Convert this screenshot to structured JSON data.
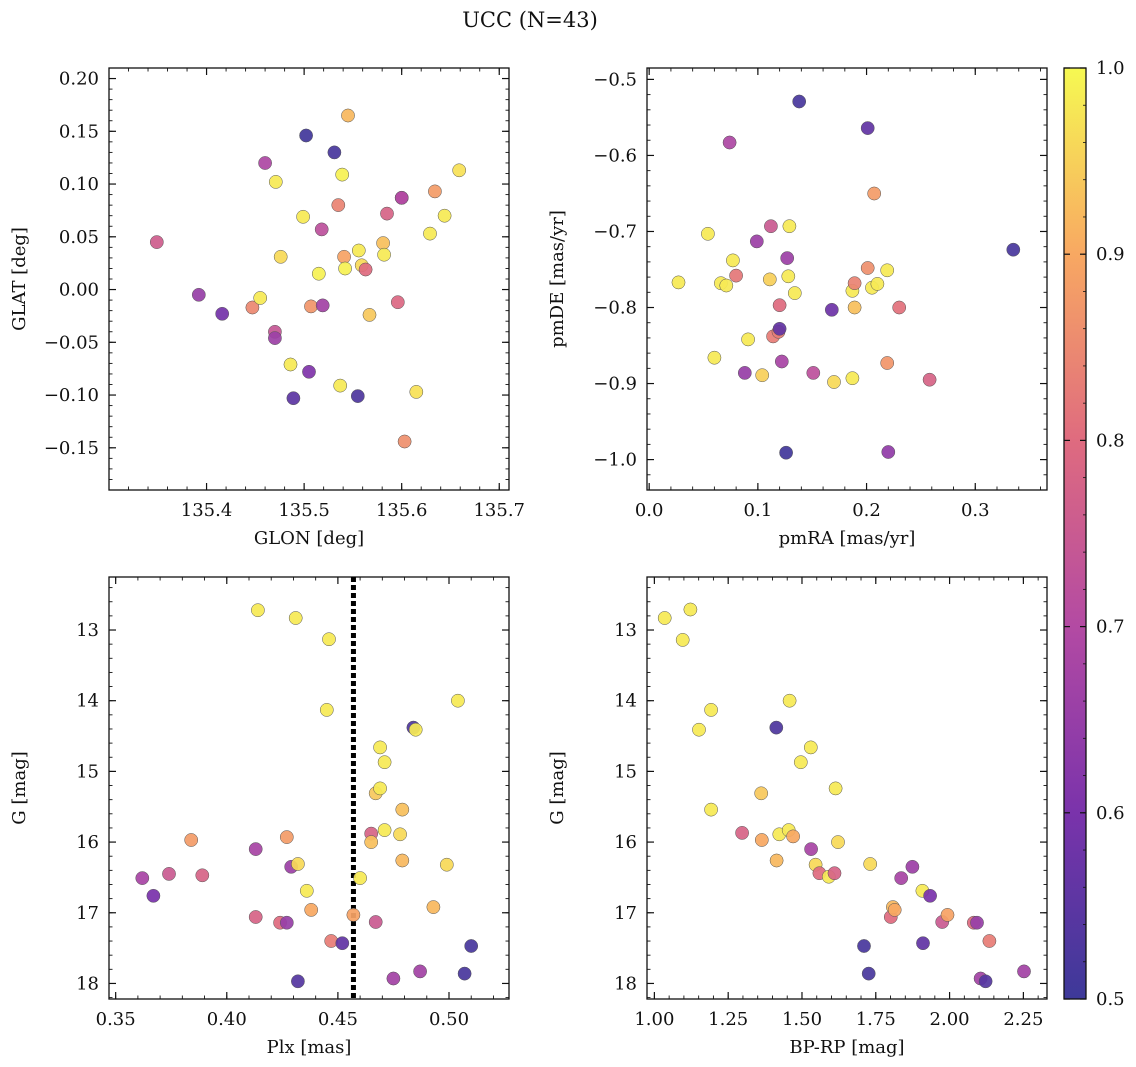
{
  "figure": {
    "title": "UCC (N=43)"
  },
  "colorbar": {
    "min": 0.5,
    "max": 1.0,
    "colormap": "plasma",
    "ticks": [
      "0.5",
      "0.6",
      "0.7",
      "0.8",
      "0.9",
      "1.0"
    ]
  },
  "chart_data": [
    {
      "type": "scatter",
      "xlabel": "GLON [deg]",
      "ylabel": "GLAT [deg]",
      "xlim": [
        135.3,
        135.71
      ],
      "ylim": [
        -0.19,
        0.21
      ],
      "xticks": [
        "135.4",
        "135.5",
        "135.6",
        "135.7"
      ],
      "yticks": [
        "0.20",
        "0.15",
        "0.10",
        "0.05",
        "0.00",
        "−0.05",
        "−0.10",
        "−0.15"
      ],
      "points": [
        {
          "x": 135.349,
          "y": 0.045,
          "c": 0.76
        },
        {
          "x": 135.392,
          "y": -0.005,
          "c": 0.65
        },
        {
          "x": 135.416,
          "y": -0.023,
          "c": 0.59
        },
        {
          "x": 135.447,
          "y": -0.017,
          "c": 0.85
        },
        {
          "x": 135.455,
          "y": -0.008,
          "c": 0.98
        },
        {
          "x": 135.46,
          "y": 0.12,
          "c": 0.69
        },
        {
          "x": 135.47,
          "y": -0.04,
          "c": 0.74
        },
        {
          "x": 135.47,
          "y": -0.046,
          "c": 0.66
        },
        {
          "x": 135.471,
          "y": 0.102,
          "c": 0.98
        },
        {
          "x": 135.476,
          "y": 0.031,
          "c": 0.96
        },
        {
          "x": 135.486,
          "y": -0.071,
          "c": 0.98
        },
        {
          "x": 135.489,
          "y": -0.103,
          "c": 0.55
        },
        {
          "x": 135.499,
          "y": 0.069,
          "c": 0.98
        },
        {
          "x": 135.502,
          "y": 0.146,
          "c": 0.51
        },
        {
          "x": 135.505,
          "y": -0.078,
          "c": 0.61
        },
        {
          "x": 135.507,
          "y": -0.016,
          "c": 0.87
        },
        {
          "x": 135.515,
          "y": 0.015,
          "c": 0.99
        },
        {
          "x": 135.518,
          "y": 0.057,
          "c": 0.72
        },
        {
          "x": 135.519,
          "y": -0.015,
          "c": 0.67
        },
        {
          "x": 135.531,
          "y": 0.13,
          "c": 0.52
        },
        {
          "x": 135.535,
          "y": 0.08,
          "c": 0.84
        },
        {
          "x": 135.537,
          "y": -0.091,
          "c": 0.98
        },
        {
          "x": 135.539,
          "y": 0.109,
          "c": 0.99
        },
        {
          "x": 135.541,
          "y": 0.031,
          "c": 0.89
        },
        {
          "x": 135.542,
          "y": 0.02,
          "c": 0.99
        },
        {
          "x": 135.545,
          "y": 0.165,
          "c": 0.92
        },
        {
          "x": 135.555,
          "y": -0.101,
          "c": 0.53
        },
        {
          "x": 135.556,
          "y": 0.037,
          "c": 0.98
        },
        {
          "x": 135.559,
          "y": 0.023,
          "c": 0.96
        },
        {
          "x": 135.563,
          "y": 0.019,
          "c": 0.8
        },
        {
          "x": 135.567,
          "y": -0.024,
          "c": 0.94
        },
        {
          "x": 135.581,
          "y": 0.044,
          "c": 0.93
        },
        {
          "x": 135.582,
          "y": 0.033,
          "c": 0.98
        },
        {
          "x": 135.585,
          "y": 0.072,
          "c": 0.78
        },
        {
          "x": 135.596,
          "y": -0.012,
          "c": 0.79
        },
        {
          "x": 135.6,
          "y": 0.087,
          "c": 0.7
        },
        {
          "x": 135.603,
          "y": -0.144,
          "c": 0.86
        },
        {
          "x": 135.615,
          "y": -0.097,
          "c": 0.97
        },
        {
          "x": 135.629,
          "y": 0.053,
          "c": 0.98
        },
        {
          "x": 135.634,
          "y": 0.093,
          "c": 0.88
        },
        {
          "x": 135.644,
          "y": 0.07,
          "c": 0.98
        },
        {
          "x": 135.659,
          "y": 0.113,
          "c": 0.97
        },
        {
          "x": 135.6,
          "y": 0.087,
          "c": 0.7
        }
      ]
    },
    {
      "type": "scatter",
      "xlabel": "pmRA [mas/yr]",
      "ylabel": "pmDE [mas/yr]",
      "xlim": [
        -0.002,
        0.366
      ],
      "ylim": [
        -1.04,
        -0.485
      ],
      "xticks": [
        "0.0",
        "0.1",
        "0.2",
        "0.3"
      ],
      "yticks": [
        "−0.5",
        "−0.6",
        "−0.7",
        "−0.8",
        "−0.9",
        "−1.0"
      ],
      "points": [
        {
          "x": 0.027,
          "y": -0.767,
          "c": 0.98
        },
        {
          "x": 0.054,
          "y": -0.703,
          "c": 0.98
        },
        {
          "x": 0.06,
          "y": -0.866,
          "c": 0.98
        },
        {
          "x": 0.066,
          "y": -0.768,
          "c": 0.98
        },
        {
          "x": 0.071,
          "y": -0.771,
          "c": 0.98
        },
        {
          "x": 0.074,
          "y": -0.583,
          "c": 0.69
        },
        {
          "x": 0.077,
          "y": -0.738,
          "c": 0.98
        },
        {
          "x": 0.08,
          "y": -0.758,
          "c": 0.82
        },
        {
          "x": 0.088,
          "y": -0.886,
          "c": 0.65
        },
        {
          "x": 0.091,
          "y": -0.842,
          "c": 0.98
        },
        {
          "x": 0.099,
          "y": -0.713,
          "c": 0.66
        },
        {
          "x": 0.104,
          "y": -0.889,
          "c": 0.95
        },
        {
          "x": 0.111,
          "y": -0.763,
          "c": 0.95
        },
        {
          "x": 0.112,
          "y": -0.693,
          "c": 0.75
        },
        {
          "x": 0.114,
          "y": -0.838,
          "c": 0.83
        },
        {
          "x": 0.119,
          "y": -0.832,
          "c": 0.83
        },
        {
          "x": 0.12,
          "y": -0.797,
          "c": 0.8
        },
        {
          "x": 0.12,
          "y": -0.828,
          "c": 0.56
        },
        {
          "x": 0.122,
          "y": -0.871,
          "c": 0.68
        },
        {
          "x": 0.126,
          "y": -0.991,
          "c": 0.51
        },
        {
          "x": 0.127,
          "y": -0.735,
          "c": 0.66
        },
        {
          "x": 0.128,
          "y": -0.759,
          "c": 0.98
        },
        {
          "x": 0.129,
          "y": -0.693,
          "c": 0.98
        },
        {
          "x": 0.134,
          "y": -0.781,
          "c": 0.98
        },
        {
          "x": 0.138,
          "y": -0.529,
          "c": 0.52
        },
        {
          "x": 0.151,
          "y": -0.886,
          "c": 0.72
        },
        {
          "x": 0.168,
          "y": -0.803,
          "c": 0.58
        },
        {
          "x": 0.17,
          "y": -0.898,
          "c": 0.96
        },
        {
          "x": 0.187,
          "y": -0.893,
          "c": 0.98
        },
        {
          "x": 0.187,
          "y": -0.778,
          "c": 0.98
        },
        {
          "x": 0.189,
          "y": -0.768,
          "c": 0.84
        },
        {
          "x": 0.189,
          "y": -0.8,
          "c": 0.93
        },
        {
          "x": 0.201,
          "y": -0.564,
          "c": 0.56
        },
        {
          "x": 0.201,
          "y": -0.748,
          "c": 0.86
        },
        {
          "x": 0.205,
          "y": -0.774,
          "c": 0.98
        },
        {
          "x": 0.207,
          "y": -0.65,
          "c": 0.88
        },
        {
          "x": 0.21,
          "y": -0.769,
          "c": 0.98
        },
        {
          "x": 0.219,
          "y": -0.751,
          "c": 0.98
        },
        {
          "x": 0.219,
          "y": -0.873,
          "c": 0.87
        },
        {
          "x": 0.22,
          "y": -0.99,
          "c": 0.64
        },
        {
          "x": 0.23,
          "y": -0.8,
          "c": 0.81
        },
        {
          "x": 0.258,
          "y": -0.895,
          "c": 0.78
        },
        {
          "x": 0.335,
          "y": -0.724,
          "c": 0.52
        }
      ]
    },
    {
      "type": "scatter",
      "xlabel": "Plx [mas]",
      "ylabel": "G [mag]",
      "xlim": [
        0.347,
        0.527
      ],
      "ylim": [
        18.22,
        12.25
      ],
      "y_inverted": true,
      "xticks": [
        "0.35",
        "0.40",
        "0.45",
        "0.50"
      ],
      "yticks": [
        "13",
        "14",
        "15",
        "16",
        "17",
        "18"
      ],
      "vline": {
        "x": 0.457,
        "style": "dotted"
      },
      "points": [
        {
          "x": 0.362,
          "y": 16.51,
          "c": 0.68
        },
        {
          "x": 0.367,
          "y": 16.76,
          "c": 0.6
        },
        {
          "x": 0.374,
          "y": 16.45,
          "c": 0.75
        },
        {
          "x": 0.384,
          "y": 15.97,
          "c": 0.88
        },
        {
          "x": 0.389,
          "y": 16.47,
          "c": 0.78
        },
        {
          "x": 0.413,
          "y": 16.1,
          "c": 0.68
        },
        {
          "x": 0.413,
          "y": 17.06,
          "c": 0.78
        },
        {
          "x": 0.414,
          "y": 12.72,
          "c": 0.98
        },
        {
          "x": 0.424,
          "y": 17.14,
          "c": 0.8
        },
        {
          "x": 0.427,
          "y": 17.14,
          "c": 0.65
        },
        {
          "x": 0.427,
          "y": 15.93,
          "c": 0.88
        },
        {
          "x": 0.429,
          "y": 16.35,
          "c": 0.66
        },
        {
          "x": 0.431,
          "y": 12.83,
          "c": 0.98
        },
        {
          "x": 0.432,
          "y": 16.31,
          "c": 0.96
        },
        {
          "x": 0.432,
          "y": 17.97,
          "c": 0.54
        },
        {
          "x": 0.436,
          "y": 16.69,
          "c": 0.98
        },
        {
          "x": 0.438,
          "y": 16.96,
          "c": 0.9
        },
        {
          "x": 0.445,
          "y": 14.13,
          "c": 0.98
        },
        {
          "x": 0.446,
          "y": 13.13,
          "c": 0.98
        },
        {
          "x": 0.447,
          "y": 17.4,
          "c": 0.83
        },
        {
          "x": 0.452,
          "y": 17.43,
          "c": 0.56
        },
        {
          "x": 0.457,
          "y": 17.03,
          "c": 0.89
        },
        {
          "x": 0.46,
          "y": 16.51,
          "c": 0.98
        },
        {
          "x": 0.465,
          "y": 15.88,
          "c": 0.78
        },
        {
          "x": 0.465,
          "y": 16.0,
          "c": 0.93
        },
        {
          "x": 0.467,
          "y": 17.13,
          "c": 0.75
        },
        {
          "x": 0.467,
          "y": 15.31,
          "c": 0.94
        },
        {
          "x": 0.469,
          "y": 14.66,
          "c": 0.98
        },
        {
          "x": 0.469,
          "y": 15.24,
          "c": 0.98
        },
        {
          "x": 0.471,
          "y": 14.87,
          "c": 0.98
        },
        {
          "x": 0.471,
          "y": 15.83,
          "c": 0.98
        },
        {
          "x": 0.475,
          "y": 17.93,
          "c": 0.67
        },
        {
          "x": 0.478,
          "y": 15.89,
          "c": 0.96
        },
        {
          "x": 0.479,
          "y": 16.26,
          "c": 0.92
        },
        {
          "x": 0.479,
          "y": 15.54,
          "c": 0.93
        },
        {
          "x": 0.484,
          "y": 14.38,
          "c": 0.53
        },
        {
          "x": 0.485,
          "y": 14.41,
          "c": 0.98
        },
        {
          "x": 0.487,
          "y": 17.83,
          "c": 0.67
        },
        {
          "x": 0.493,
          "y": 16.92,
          "c": 0.92
        },
        {
          "x": 0.499,
          "y": 16.32,
          "c": 0.96
        },
        {
          "x": 0.504,
          "y": 14.0,
          "c": 0.98
        },
        {
          "x": 0.507,
          "y": 17.86,
          "c": 0.52
        },
        {
          "x": 0.51,
          "y": 17.47,
          "c": 0.52
        }
      ]
    },
    {
      "type": "scatter",
      "xlabel": "BP-RP [mag]",
      "ylabel": "G [mag]",
      "xlim": [
        0.975,
        2.33
      ],
      "ylim": [
        18.22,
        12.25
      ],
      "y_inverted": true,
      "xticks": [
        "1.00",
        "1.25",
        "1.50",
        "1.75",
        "2.00",
        "2.25"
      ],
      "yticks": [
        "13",
        "14",
        "15",
        "16",
        "17",
        "18"
      ],
      "points": [
        {
          "x": 1.035,
          "y": 12.83,
          "c": 0.98
        },
        {
          "x": 1.096,
          "y": 13.14,
          "c": 0.98
        },
        {
          "x": 1.122,
          "y": 12.71,
          "c": 0.98
        },
        {
          "x": 1.151,
          "y": 14.41,
          "c": 0.98
        },
        {
          "x": 1.192,
          "y": 14.13,
          "c": 0.98
        },
        {
          "x": 1.192,
          "y": 15.54,
          "c": 0.98
        },
        {
          "x": 1.297,
          "y": 15.87,
          "c": 0.78
        },
        {
          "x": 1.362,
          "y": 15.31,
          "c": 0.94
        },
        {
          "x": 1.364,
          "y": 15.97,
          "c": 0.9
        },
        {
          "x": 1.413,
          "y": 14.38,
          "c": 0.53
        },
        {
          "x": 1.414,
          "y": 16.26,
          "c": 0.92
        },
        {
          "x": 1.423,
          "y": 15.89,
          "c": 0.98
        },
        {
          "x": 1.455,
          "y": 15.83,
          "c": 0.98
        },
        {
          "x": 1.458,
          "y": 14.0,
          "c": 0.98
        },
        {
          "x": 1.47,
          "y": 15.92,
          "c": 0.9
        },
        {
          "x": 1.496,
          "y": 14.87,
          "c": 0.98
        },
        {
          "x": 1.53,
          "y": 14.66,
          "c": 0.98
        },
        {
          "x": 1.531,
          "y": 16.1,
          "c": 0.68
        },
        {
          "x": 1.546,
          "y": 16.32,
          "c": 0.96
        },
        {
          "x": 1.559,
          "y": 16.44,
          "c": 0.8
        },
        {
          "x": 1.591,
          "y": 16.49,
          "c": 0.98
        },
        {
          "x": 1.61,
          "y": 16.44,
          "c": 0.78
        },
        {
          "x": 1.614,
          "y": 15.24,
          "c": 0.98
        },
        {
          "x": 1.622,
          "y": 16.0,
          "c": 0.96
        },
        {
          "x": 1.71,
          "y": 17.47,
          "c": 0.52
        },
        {
          "x": 1.726,
          "y": 17.86,
          "c": 0.52
        },
        {
          "x": 1.731,
          "y": 16.31,
          "c": 0.96
        },
        {
          "x": 1.801,
          "y": 17.06,
          "c": 0.8
        },
        {
          "x": 1.808,
          "y": 16.92,
          "c": 0.92
        },
        {
          "x": 1.814,
          "y": 16.96,
          "c": 0.9
        },
        {
          "x": 1.836,
          "y": 16.51,
          "c": 0.68
        },
        {
          "x": 1.874,
          "y": 16.35,
          "c": 0.66
        },
        {
          "x": 1.908,
          "y": 16.69,
          "c": 0.98
        },
        {
          "x": 1.91,
          "y": 17.43,
          "c": 0.56
        },
        {
          "x": 1.934,
          "y": 16.76,
          "c": 0.6
        },
        {
          "x": 1.975,
          "y": 17.13,
          "c": 0.75
        },
        {
          "x": 1.993,
          "y": 17.03,
          "c": 0.89
        },
        {
          "x": 2.082,
          "y": 17.14,
          "c": 0.8
        },
        {
          "x": 2.093,
          "y": 17.14,
          "c": 0.65
        },
        {
          "x": 2.105,
          "y": 17.93,
          "c": 0.67
        },
        {
          "x": 2.122,
          "y": 17.97,
          "c": 0.54
        },
        {
          "x": 2.135,
          "y": 17.4,
          "c": 0.83
        },
        {
          "x": 2.252,
          "y": 17.83,
          "c": 0.67
        }
      ]
    }
  ]
}
